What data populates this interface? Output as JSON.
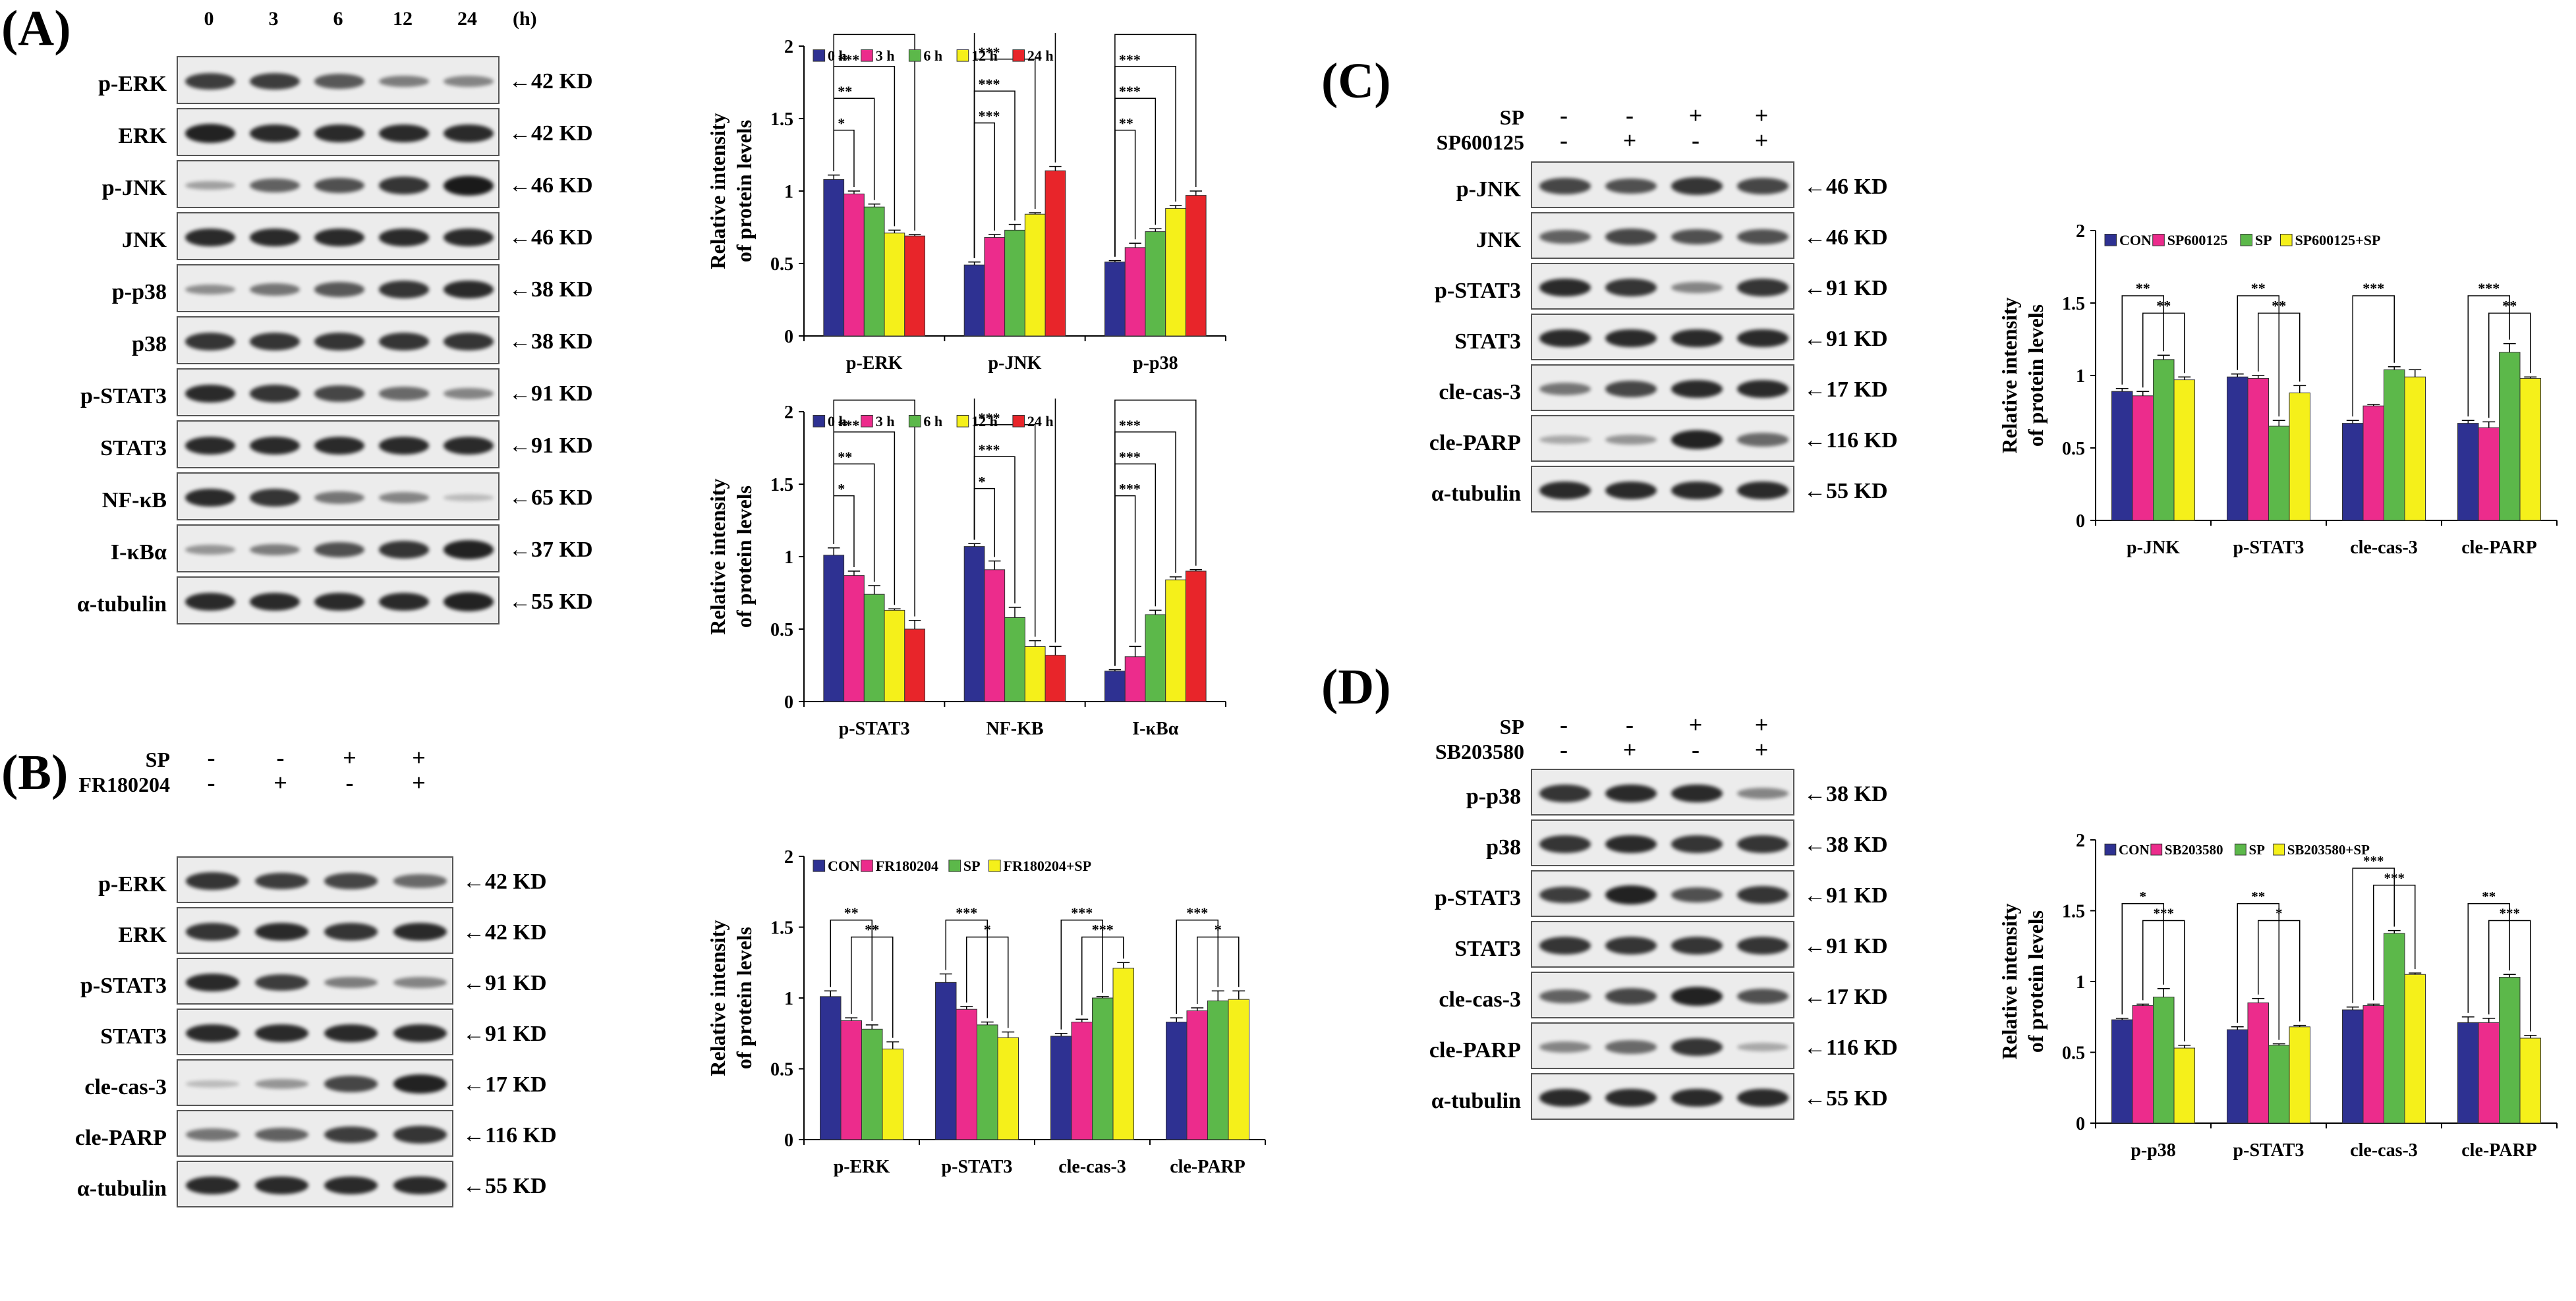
{
  "panels": {
    "A": {
      "label": "(A)",
      "time_header": [
        "0",
        "3",
        "6",
        "12",
        "24"
      ],
      "time_unit": "(h)",
      "rows": [
        {
          "protein": "p-ERK",
          "kd": "42 KD",
          "intensity": [
            0.8,
            0.8,
            0.65,
            0.45,
            0.4
          ]
        },
        {
          "protein": "ERK",
          "kd": "42 KD",
          "intensity": [
            0.95,
            0.9,
            0.9,
            0.9,
            0.9
          ]
        },
        {
          "protein": "p-JNK",
          "kd": "46 KD",
          "intensity": [
            0.25,
            0.6,
            0.7,
            0.85,
            1.0
          ]
        },
        {
          "protein": "JNK",
          "kd": "46 KD",
          "intensity": [
            0.9,
            0.9,
            0.9,
            0.9,
            0.9
          ]
        },
        {
          "protein": "p-p38",
          "kd": "38 KD",
          "intensity": [
            0.35,
            0.5,
            0.65,
            0.85,
            0.9
          ]
        },
        {
          "protein": "p38",
          "kd": "38 KD",
          "intensity": [
            0.85,
            0.85,
            0.85,
            0.85,
            0.85
          ]
        },
        {
          "protein": "p-STAT3",
          "kd": "91 KD",
          "intensity": [
            0.9,
            0.85,
            0.75,
            0.55,
            0.4
          ]
        },
        {
          "protein": "STAT3",
          "kd": "91 KD",
          "intensity": [
            0.9,
            0.9,
            0.9,
            0.9,
            0.9
          ]
        },
        {
          "protein": "NF-κB",
          "kd": "65 KD",
          "intensity": [
            0.9,
            0.85,
            0.5,
            0.4,
            0.1
          ]
        },
        {
          "protein": "I-κBα",
          "kd": "37 KD",
          "intensity": [
            0.3,
            0.45,
            0.7,
            0.85,
            0.95
          ]
        },
        {
          "protein": "α-tubulin",
          "kd": "55 KD",
          "intensity": [
            0.9,
            0.9,
            0.9,
            0.9,
            0.95
          ]
        }
      ]
    },
    "B": {
      "label": "(B)",
      "treatments": [
        {
          "name": "SP",
          "signs": [
            "-",
            "-",
            "+",
            "+"
          ]
        },
        {
          "name": "FR180204",
          "signs": [
            "-",
            "+",
            "-",
            "+"
          ]
        }
      ],
      "rows": [
        {
          "protein": "p-ERK",
          "kd": "42 KD",
          "intensity": [
            0.85,
            0.8,
            0.75,
            0.55
          ]
        },
        {
          "protein": "ERK",
          "kd": "42 KD",
          "intensity": [
            0.85,
            0.9,
            0.85,
            0.9
          ]
        },
        {
          "protein": "p-STAT3",
          "kd": "91 KD",
          "intensity": [
            0.9,
            0.8,
            0.45,
            0.4
          ]
        },
        {
          "protein": "STAT3",
          "kd": "91 KD",
          "intensity": [
            0.9,
            0.9,
            0.9,
            0.9
          ]
        },
        {
          "protein": "cle-cas-3",
          "kd": "17 KD",
          "intensity": [
            0.1,
            0.3,
            0.75,
            0.95
          ]
        },
        {
          "protein": "cle-PARP",
          "kd": "116 KD",
          "intensity": [
            0.5,
            0.6,
            0.8,
            0.85
          ]
        },
        {
          "protein": "α-tubulin",
          "kd": "55 KD",
          "intensity": [
            0.9,
            0.9,
            0.9,
            0.9
          ]
        }
      ]
    },
    "C": {
      "label": "(C)",
      "treatments": [
        {
          "name": "SP",
          "signs": [
            "-",
            "-",
            "+",
            "+"
          ]
        },
        {
          "name": "SP600125",
          "signs": [
            "-",
            "+",
            "-",
            "+"
          ]
        }
      ],
      "rows": [
        {
          "protein": "p-JNK",
          "kd": "46 KD",
          "intensity": [
            0.75,
            0.7,
            0.85,
            0.75
          ]
        },
        {
          "protein": "JNK",
          "kd": "46 KD",
          "intensity": [
            0.6,
            0.75,
            0.7,
            0.7
          ]
        },
        {
          "protein": "p-STAT3",
          "kd": "91 KD",
          "intensity": [
            0.9,
            0.85,
            0.4,
            0.85
          ]
        },
        {
          "protein": "STAT3",
          "kd": "91 KD",
          "intensity": [
            0.9,
            0.9,
            0.9,
            0.9
          ]
        },
        {
          "protein": "cle-cas-3",
          "kd": "17 KD",
          "intensity": [
            0.5,
            0.75,
            0.9,
            0.9
          ]
        },
        {
          "protein": "cle-PARP",
          "kd": "116 KD",
          "intensity": [
            0.2,
            0.3,
            0.95,
            0.55
          ]
        },
        {
          "protein": "α-tubulin",
          "kd": "55 KD",
          "intensity": [
            0.9,
            0.9,
            0.9,
            0.9
          ]
        }
      ]
    },
    "D": {
      "label": "(D)",
      "treatments": [
        {
          "name": "SP",
          "signs": [
            "-",
            "-",
            "+",
            "+"
          ]
        },
        {
          "name": "SB203580",
          "signs": [
            "-",
            "+",
            "-",
            "+"
          ]
        }
      ],
      "rows": [
        {
          "protein": "p-p38",
          "kd": "38 KD",
          "intensity": [
            0.85,
            0.9,
            0.9,
            0.4
          ]
        },
        {
          "protein": "p38",
          "kd": "38 KD",
          "intensity": [
            0.85,
            0.9,
            0.85,
            0.85
          ]
        },
        {
          "protein": "p-STAT3",
          "kd": "91 KD",
          "intensity": [
            0.8,
            0.95,
            0.7,
            0.85
          ]
        },
        {
          "protein": "STAT3",
          "kd": "91 KD",
          "intensity": [
            0.85,
            0.85,
            0.85,
            0.85
          ]
        },
        {
          "protein": "cle-cas-3",
          "kd": "17 KD",
          "intensity": [
            0.6,
            0.75,
            0.95,
            0.7
          ]
        },
        {
          "protein": "cle-PARP",
          "kd": "116 KD",
          "intensity": [
            0.4,
            0.55,
            0.85,
            0.2
          ]
        },
        {
          "protein": "α-tubulin",
          "kd": "55 KD",
          "intensity": [
            0.9,
            0.9,
            0.9,
            0.9
          ]
        }
      ]
    }
  },
  "colors": {
    "blue": "#2e3192",
    "pink": "#ec2c8c",
    "green": "#5cb84a",
    "yellow": "#f5f01a",
    "red": "#e8252a"
  },
  "chart_data": [
    {
      "id": "A1",
      "type": "bar",
      "categories": [
        "p-ERK",
        "p-JNK",
        "p-p38"
      ],
      "series": [
        {
          "name": "0 h",
          "color": "#2e3192",
          "values": [
            1.08,
            0.49,
            0.51
          ],
          "errors": [
            0.03,
            0.02,
            0.01
          ]
        },
        {
          "name": "3 h",
          "color": "#ec2c8c",
          "values": [
            0.98,
            0.68,
            0.61
          ],
          "errors": [
            0.02,
            0.02,
            0.03
          ]
        },
        {
          "name": "6 h",
          "color": "#5cb84a",
          "values": [
            0.89,
            0.73,
            0.72
          ],
          "errors": [
            0.02,
            0.04,
            0.02
          ]
        },
        {
          "name": "12 h",
          "color": "#f5f01a",
          "values": [
            0.71,
            0.84,
            0.88
          ],
          "errors": [
            0.02,
            0.01,
            0.02
          ]
        },
        {
          "name": "24 h",
          "color": "#e8252a",
          "values": [
            0.69,
            1.14,
            0.97
          ],
          "errors": [
            0.01,
            0.03,
            0.03
          ]
        }
      ],
      "sig": [
        {
          "cat": 0,
          "marks": [
            "*",
            "**",
            "***",
            "***"
          ]
        },
        {
          "cat": 1,
          "marks": [
            "***",
            "***",
            "***",
            "***"
          ]
        },
        {
          "cat": 2,
          "marks": [
            "**",
            "***",
            "***",
            "***"
          ]
        }
      ],
      "ylabel": [
        "Relative intensity",
        "of protein levels"
      ],
      "ylim": [
        0,
        2
      ],
      "yticks": [
        "0",
        "0.5",
        "1",
        "1.5",
        "2"
      ],
      "legend": "top-left"
    },
    {
      "id": "A2",
      "type": "bar",
      "categories": [
        "p-STAT3",
        "NF-KB",
        "I-κBα"
      ],
      "series": [
        {
          "name": "0 h",
          "color": "#2e3192",
          "values": [
            1.01,
            1.07,
            0.21
          ],
          "errors": [
            0.05,
            0.02,
            0.01
          ]
        },
        {
          "name": "3 h",
          "color": "#ec2c8c",
          "values": [
            0.87,
            0.91,
            0.31
          ],
          "errors": [
            0.03,
            0.06,
            0.07
          ]
        },
        {
          "name": "6 h",
          "color": "#5cb84a",
          "values": [
            0.74,
            0.58,
            0.6
          ],
          "errors": [
            0.06,
            0.07,
            0.03
          ]
        },
        {
          "name": "12 h",
          "color": "#f5f01a",
          "values": [
            0.63,
            0.38,
            0.84
          ],
          "errors": [
            0.01,
            0.04,
            0.02
          ]
        },
        {
          "name": "24 h",
          "color": "#e8252a",
          "values": [
            0.5,
            0.32,
            0.9
          ],
          "errors": [
            0.06,
            0.06,
            0.01
          ]
        }
      ],
      "sig": [
        {
          "cat": 0,
          "marks": [
            "*",
            "**",
            "***",
            "***"
          ]
        },
        {
          "cat": 1,
          "marks": [
            "*",
            "***",
            "***",
            "***"
          ]
        },
        {
          "cat": 2,
          "marks": [
            "***",
            "***",
            "***",
            "***"
          ]
        }
      ],
      "ylabel": [
        "Relative intensity",
        "of protein levels"
      ],
      "ylim": [
        0,
        2
      ],
      "yticks": [
        "0",
        "0.5",
        "1",
        "1.5",
        "2"
      ],
      "legend": "top-left"
    },
    {
      "id": "B",
      "type": "bar",
      "categories": [
        "p-ERK",
        "p-STAT3",
        "cle-cas-3",
        "cle-PARP"
      ],
      "series": [
        {
          "name": "CON",
          "color": "#2e3192",
          "values": [
            1.01,
            1.11,
            0.73,
            0.83
          ],
          "errors": [
            0.04,
            0.06,
            0.02,
            0.03
          ]
        },
        {
          "name": "FR180204",
          "color": "#ec2c8c",
          "values": [
            0.84,
            0.92,
            0.83,
            0.91
          ],
          "errors": [
            0.02,
            0.02,
            0.02,
            0.02
          ]
        },
        {
          "name": "SP",
          "color": "#5cb84a",
          "values": [
            0.78,
            0.81,
            1.0,
            0.98
          ],
          "errors": [
            0.03,
            0.02,
            0.01,
            0.07
          ]
        },
        {
          "name": "FR180204+SP",
          "color": "#f5f01a",
          "values": [
            0.64,
            0.72,
            1.21,
            0.99
          ],
          "errors": [
            0.05,
            0.04,
            0.04,
            0.06
          ]
        }
      ],
      "sig": [
        {
          "cat": 0,
          "marks": [
            "**",
            "**"
          ]
        },
        {
          "cat": 1,
          "marks": [
            "***",
            "*"
          ]
        },
        {
          "cat": 2,
          "marks": [
            "***",
            "***"
          ]
        },
        {
          "cat": 3,
          "marks": [
            "***",
            "*"
          ]
        }
      ],
      "ylabel": [
        "Relative intensity",
        "of protein levels"
      ],
      "ylim": [
        0,
        2
      ],
      "yticks": [
        "0",
        "0.5",
        "1",
        "1.5",
        "2"
      ],
      "legend": "top-left"
    },
    {
      "id": "C",
      "type": "bar",
      "categories": [
        "p-JNK",
        "p-STAT3",
        "cle-cas-3",
        "cle-PARP"
      ],
      "series": [
        {
          "name": "CON",
          "color": "#2e3192",
          "values": [
            0.89,
            0.99,
            0.67,
            0.67
          ],
          "errors": [
            0.02,
            0.02,
            0.02,
            0.02
          ]
        },
        {
          "name": "SP600125",
          "color": "#ec2c8c",
          "values": [
            0.86,
            0.98,
            0.79,
            0.64
          ],
          "errors": [
            0.03,
            0.02,
            0.01,
            0.04
          ]
        },
        {
          "name": "SP",
          "color": "#5cb84a",
          "values": [
            1.11,
            0.65,
            1.04,
            1.16
          ],
          "errors": [
            0.03,
            0.04,
            0.02,
            0.06
          ]
        },
        {
          "name": "SP600125+SP",
          "color": "#f5f01a",
          "values": [
            0.97,
            0.88,
            0.99,
            0.98
          ],
          "errors": [
            0.02,
            0.05,
            0.05,
            0.01
          ]
        }
      ],
      "sig": [
        {
          "cat": 0,
          "marks": [
            "**",
            "**"
          ]
        },
        {
          "cat": 1,
          "marks": [
            "**",
            "**"
          ]
        },
        {
          "cat": 2,
          "marks": [
            "***"
          ]
        },
        {
          "cat": 3,
          "marks": [
            "***",
            "**"
          ]
        }
      ],
      "ylabel": [
        "Relative intensity",
        "of protein levels"
      ],
      "ylim": [
        0,
        2
      ],
      "yticks": [
        "0",
        "0.5",
        "1",
        "1.5",
        "2"
      ],
      "legend": "top-left"
    },
    {
      "id": "D",
      "type": "bar",
      "categories": [
        "p-p38",
        "p-STAT3",
        "cle-cas-3",
        "cle-PARP"
      ],
      "series": [
        {
          "name": "CON",
          "color": "#2e3192",
          "values": [
            0.73,
            0.66,
            0.8,
            0.71
          ],
          "errors": [
            0.01,
            0.02,
            0.02,
            0.04
          ]
        },
        {
          "name": "SB203580",
          "color": "#ec2c8c",
          "values": [
            0.83,
            0.85,
            0.83,
            0.71
          ],
          "errors": [
            0.01,
            0.03,
            0.01,
            0.03
          ]
        },
        {
          "name": "SP",
          "color": "#5cb84a",
          "values": [
            0.89,
            0.55,
            1.34,
            1.03
          ],
          "errors": [
            0.06,
            0.01,
            0.02,
            0.02
          ]
        },
        {
          "name": "SB203580+SP",
          "color": "#f5f01a",
          "values": [
            0.53,
            0.68,
            1.05,
            0.6
          ],
          "errors": [
            0.02,
            0.01,
            0.01,
            0.02
          ]
        }
      ],
      "sig": [
        {
          "cat": 0,
          "marks": [
            "*",
            "***"
          ]
        },
        {
          "cat": 1,
          "marks": [
            "**",
            "*"
          ]
        },
        {
          "cat": 2,
          "marks": [
            "***",
            "***"
          ]
        },
        {
          "cat": 3,
          "marks": [
            "**",
            "***"
          ]
        }
      ],
      "ylabel": [
        "Relative intensity",
        "of protein levels"
      ],
      "ylim": [
        0,
        2
      ],
      "yticks": [
        "0",
        "0.5",
        "1",
        "1.5",
        "2"
      ],
      "legend": "top-left"
    }
  ]
}
